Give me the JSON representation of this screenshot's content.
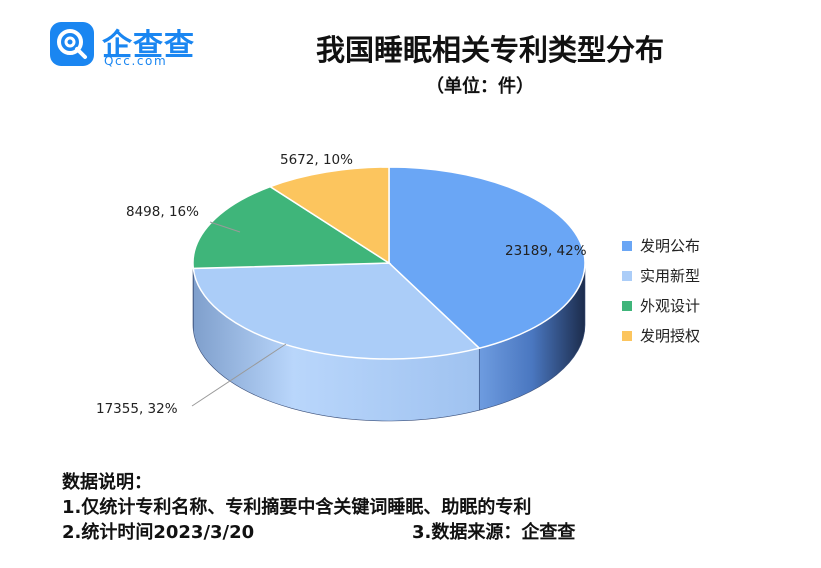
{
  "logo": {
    "name": "企查查",
    "domain": "Qcc.com",
    "brand_color": "#1a86f1",
    "icon": "qcc-logo-icon"
  },
  "chart_data": {
    "type": "pie",
    "title": "我国睡眠相关专利类型分布",
    "subtitle": "（单位：件）",
    "style": "3d",
    "legend_position": "right",
    "slices": [
      {
        "name": "发明公布",
        "value": 23189,
        "percent": "42%",
        "label": "23189, 42%",
        "color": "#6aa6f5"
      },
      {
        "name": "实用新型",
        "value": 17355,
        "percent": "32%",
        "label": "17355, 32%",
        "color": "#abcdf8"
      },
      {
        "name": "外观设计",
        "value": 8498,
        "percent": "16%",
        "label": "8498, 16%",
        "color": "#3fb57a"
      },
      {
        "name": "发明授权",
        "value": 5672,
        "percent": "10%",
        "label": "5672, 10%",
        "color": "#fcc55e"
      }
    ]
  },
  "notes": {
    "heading": "数据说明：",
    "line1": "1.仅统计专利名称、专利摘要中含关键词睡眠、助眠的专利",
    "line2": "2.统计时间2023/3/20",
    "source": "3.数据来源：企查查"
  }
}
